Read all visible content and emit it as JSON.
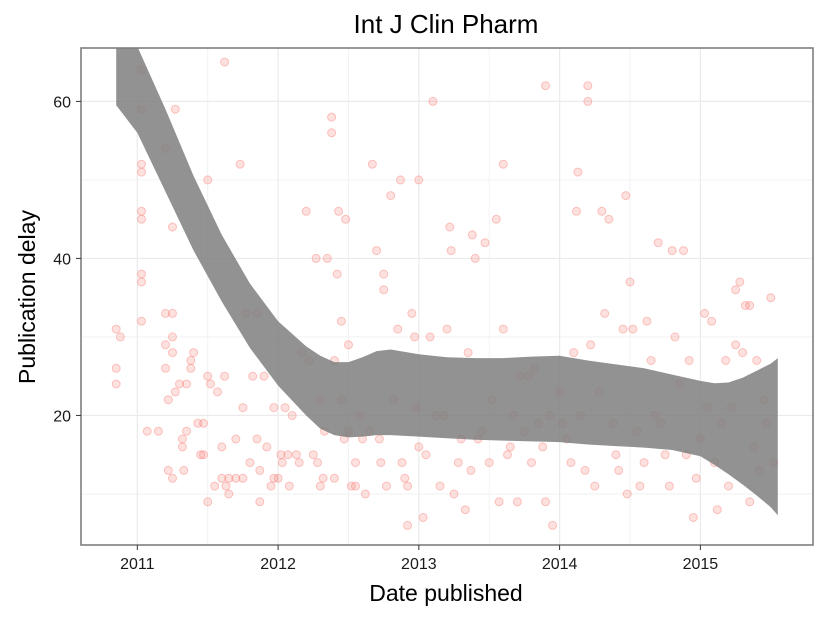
{
  "chart_data": {
    "type": "scatter",
    "title": "Int J Clin Pharm",
    "xlabel": "Date published",
    "ylabel": "Publication delay",
    "xlim": [
      2010.6,
      2015.8
    ],
    "ylim": [
      3.5,
      66.8
    ],
    "x_ticks": [
      2011,
      2012,
      2013,
      2014,
      2015
    ],
    "x_tick_labels": [
      "2011",
      "2012",
      "2013",
      "2014",
      "2015"
    ],
    "y_ticks": [
      20,
      40,
      60
    ],
    "y_tick_labels": [
      "20",
      "40",
      "60"
    ],
    "grid": true,
    "legend": "none",
    "point_color": "#f8766d",
    "smooth_color": "#7f7f7f",
    "points": [
      [
        2010.85,
        31
      ],
      [
        2010.85,
        26
      ],
      [
        2010.85,
        24
      ],
      [
        2010.88,
        30
      ],
      [
        2011.03,
        64
      ],
      [
        2011.03,
        59
      ],
      [
        2011.03,
        52
      ],
      [
        2011.03,
        51
      ],
      [
        2011.03,
        46
      ],
      [
        2011.03,
        45
      ],
      [
        2011.03,
        38
      ],
      [
        2011.03,
        37
      ],
      [
        2011.03,
        32
      ],
      [
        2011.07,
        18
      ],
      [
        2011.15,
        18
      ],
      [
        2011.2,
        54
      ],
      [
        2011.2,
        33
      ],
      [
        2011.2,
        29
      ],
      [
        2011.2,
        26
      ],
      [
        2011.22,
        22
      ],
      [
        2011.22,
        13
      ],
      [
        2011.25,
        12
      ],
      [
        2011.25,
        44
      ],
      [
        2011.27,
        59
      ],
      [
        2011.25,
        33
      ],
      [
        2011.25,
        30
      ],
      [
        2011.25,
        28
      ],
      [
        2011.27,
        23
      ],
      [
        2011.3,
        24
      ],
      [
        2011.32,
        17
      ],
      [
        2011.32,
        16
      ],
      [
        2011.33,
        13
      ],
      [
        2011.35,
        24
      ],
      [
        2011.35,
        18
      ],
      [
        2011.38,
        26
      ],
      [
        2011.38,
        27
      ],
      [
        2011.4,
        28
      ],
      [
        2011.43,
        19
      ],
      [
        2011.45,
        15
      ],
      [
        2011.47,
        15
      ],
      [
        2011.47,
        19
      ],
      [
        2011.5,
        50
      ],
      [
        2011.5,
        25
      ],
      [
        2011.5,
        9
      ],
      [
        2011.52,
        24
      ],
      [
        2011.55,
        11
      ],
      [
        2011.57,
        23
      ],
      [
        2011.6,
        16
      ],
      [
        2011.6,
        12
      ],
      [
        2011.62,
        65
      ],
      [
        2011.62,
        25
      ],
      [
        2011.63,
        11
      ],
      [
        2011.65,
        10
      ],
      [
        2011.65,
        12
      ],
      [
        2011.7,
        17
      ],
      [
        2011.7,
        12
      ],
      [
        2011.73,
        52
      ],
      [
        2011.75,
        21
      ],
      [
        2011.75,
        12
      ],
      [
        2011.77,
        33
      ],
      [
        2011.8,
        14
      ],
      [
        2011.82,
        25
      ],
      [
        2011.85,
        33
      ],
      [
        2011.85,
        17
      ],
      [
        2011.87,
        13
      ],
      [
        2011.87,
        9
      ],
      [
        2011.9,
        25
      ],
      [
        2011.92,
        16
      ],
      [
        2011.95,
        11
      ],
      [
        2011.97,
        21
      ],
      [
        2011.97,
        12
      ],
      [
        2012.0,
        12
      ],
      [
        2012.02,
        15
      ],
      [
        2012.03,
        14
      ],
      [
        2012.05,
        21
      ],
      [
        2012.07,
        15
      ],
      [
        2012.08,
        11
      ],
      [
        2012.1,
        20
      ],
      [
        2012.13,
        15
      ],
      [
        2012.15,
        14
      ],
      [
        2012.17,
        28
      ],
      [
        2012.2,
        46
      ],
      [
        2012.22,
        27
      ],
      [
        2012.25,
        15
      ],
      [
        2012.27,
        40
      ],
      [
        2012.28,
        14
      ],
      [
        2012.3,
        22
      ],
      [
        2012.3,
        11
      ],
      [
        2012.32,
        12
      ],
      [
        2012.33,
        18
      ],
      [
        2012.35,
        40
      ],
      [
        2012.38,
        56
      ],
      [
        2012.38,
        58
      ],
      [
        2012.4,
        27
      ],
      [
        2012.4,
        12
      ],
      [
        2012.42,
        38
      ],
      [
        2012.43,
        46
      ],
      [
        2012.45,
        32
      ],
      [
        2012.45,
        22
      ],
      [
        2012.47,
        17
      ],
      [
        2012.48,
        45
      ],
      [
        2012.5,
        29
      ],
      [
        2012.5,
        18
      ],
      [
        2012.52,
        11
      ],
      [
        2012.55,
        14
      ],
      [
        2012.55,
        11
      ],
      [
        2012.58,
        20
      ],
      [
        2012.6,
        17
      ],
      [
        2012.62,
        10
      ],
      [
        2012.65,
        18
      ],
      [
        2012.67,
        52
      ],
      [
        2012.7,
        41
      ],
      [
        2012.72,
        17
      ],
      [
        2012.73,
        14
      ],
      [
        2012.75,
        38
      ],
      [
        2012.75,
        36
      ],
      [
        2012.77,
        11
      ],
      [
        2012.8,
        48
      ],
      [
        2012.82,
        22
      ],
      [
        2012.85,
        31
      ],
      [
        2012.87,
        50
      ],
      [
        2012.88,
        14
      ],
      [
        2012.9,
        12
      ],
      [
        2012.92,
        11
      ],
      [
        2012.92,
        6
      ],
      [
        2012.95,
        33
      ],
      [
        2012.97,
        30
      ],
      [
        2012.98,
        21
      ],
      [
        2013.0,
        50
      ],
      [
        2013.0,
        16
      ],
      [
        2013.03,
        7
      ],
      [
        2013.05,
        15
      ],
      [
        2013.08,
        30
      ],
      [
        2013.1,
        60
      ],
      [
        2013.12,
        20
      ],
      [
        2013.15,
        11
      ],
      [
        2013.18,
        20
      ],
      [
        2013.2,
        31
      ],
      [
        2013.22,
        44
      ],
      [
        2013.23,
        41
      ],
      [
        2013.25,
        10
      ],
      [
        2013.28,
        14
      ],
      [
        2013.3,
        17
      ],
      [
        2013.33,
        8
      ],
      [
        2013.35,
        28
      ],
      [
        2013.37,
        13
      ],
      [
        2013.38,
        43
      ],
      [
        2013.4,
        40
      ],
      [
        2013.42,
        17
      ],
      [
        2013.45,
        18
      ],
      [
        2013.47,
        42
      ],
      [
        2013.5,
        14
      ],
      [
        2013.52,
        22
      ],
      [
        2013.55,
        45
      ],
      [
        2013.57,
        9
      ],
      [
        2013.6,
        31
      ],
      [
        2013.6,
        52
      ],
      [
        2013.63,
        15
      ],
      [
        2013.65,
        16
      ],
      [
        2013.67,
        20
      ],
      [
        2013.7,
        9
      ],
      [
        2013.72,
        25
      ],
      [
        2013.75,
        18
      ],
      [
        2013.78,
        25
      ],
      [
        2013.8,
        14
      ],
      [
        2013.82,
        26
      ],
      [
        2013.85,
        19
      ],
      [
        2013.88,
        16
      ],
      [
        2013.9,
        62
      ],
      [
        2013.9,
        9
      ],
      [
        2013.93,
        20
      ],
      [
        2013.95,
        6
      ],
      [
        2014.0,
        23
      ],
      [
        2014.02,
        19
      ],
      [
        2014.05,
        17
      ],
      [
        2014.08,
        14
      ],
      [
        2014.1,
        28
      ],
      [
        2014.12,
        46
      ],
      [
        2014.13,
        51
      ],
      [
        2014.15,
        20
      ],
      [
        2014.18,
        13
      ],
      [
        2014.2,
        62
      ],
      [
        2014.2,
        60
      ],
      [
        2014.22,
        29
      ],
      [
        2014.25,
        11
      ],
      [
        2014.28,
        23
      ],
      [
        2014.3,
        46
      ],
      [
        2014.32,
        33
      ],
      [
        2014.35,
        45
      ],
      [
        2014.38,
        19
      ],
      [
        2014.4,
        15
      ],
      [
        2014.42,
        13
      ],
      [
        2014.45,
        31
      ],
      [
        2014.47,
        48
      ],
      [
        2014.48,
        10
      ],
      [
        2014.5,
        37
      ],
      [
        2014.52,
        31
      ],
      [
        2014.55,
        18
      ],
      [
        2014.57,
        11
      ],
      [
        2014.6,
        14
      ],
      [
        2014.62,
        32
      ],
      [
        2014.65,
        27
      ],
      [
        2014.68,
        20
      ],
      [
        2014.7,
        42
      ],
      [
        2014.72,
        19
      ],
      [
        2014.75,
        15
      ],
      [
        2014.78,
        11
      ],
      [
        2014.8,
        41
      ],
      [
        2014.82,
        30
      ],
      [
        2014.85,
        24
      ],
      [
        2014.88,
        41
      ],
      [
        2014.9,
        15
      ],
      [
        2014.92,
        27
      ],
      [
        2014.95,
        7
      ],
      [
        2014.97,
        12
      ],
      [
        2015.0,
        17
      ],
      [
        2015.03,
        33
      ],
      [
        2015.05,
        21
      ],
      [
        2015.08,
        32
      ],
      [
        2015.1,
        14
      ],
      [
        2015.12,
        8
      ],
      [
        2015.15,
        19
      ],
      [
        2015.18,
        27
      ],
      [
        2015.2,
        11
      ],
      [
        2015.22,
        21
      ],
      [
        2015.25,
        29
      ],
      [
        2015.25,
        36
      ],
      [
        2015.28,
        37
      ],
      [
        2015.3,
        28
      ],
      [
        2015.32,
        34
      ],
      [
        2015.35,
        34
      ],
      [
        2015.35,
        9
      ],
      [
        2015.38,
        16
      ],
      [
        2015.4,
        27
      ],
      [
        2015.42,
        13
      ],
      [
        2015.45,
        22
      ],
      [
        2015.47,
        19
      ],
      [
        2015.5,
        35
      ],
      [
        2015.52,
        14
      ]
    ],
    "smooth_band": {
      "x": [
        2010.85,
        2011.0,
        2011.2,
        2011.4,
        2011.6,
        2011.8,
        2012.0,
        2012.2,
        2012.3,
        2012.4,
        2012.5,
        2012.6,
        2012.7,
        2012.8,
        2013.0,
        2013.2,
        2013.4,
        2013.6,
        2013.8,
        2014.0,
        2014.2,
        2014.4,
        2014.6,
        2014.8,
        2015.0,
        2015.1,
        2015.2,
        2015.3,
        2015.4,
        2015.5,
        2015.55
      ],
      "upper": [
        72,
        67,
        59,
        50.5,
        43,
        36.8,
        32,
        28.8,
        27.6,
        26.8,
        26.8,
        27.4,
        28.2,
        28.4,
        27.8,
        27.4,
        27.3,
        27.3,
        27.5,
        27.6,
        27,
        26.5,
        26,
        25.2,
        24.4,
        24.1,
        24.2,
        24.8,
        25.7,
        26.6,
        27.3
      ],
      "lower": [
        59.5,
        56,
        48.5,
        41,
        34.5,
        28.6,
        23.8,
        20,
        18.3,
        17.5,
        17.2,
        17.3,
        17.5,
        17.5,
        17.3,
        17.1,
        16.9,
        16.8,
        16.7,
        16.6,
        16.3,
        16.1,
        15.9,
        15.6,
        14.8,
        13.7,
        12.5,
        11.2,
        9.8,
        8.3,
        7.3
      ]
    }
  }
}
